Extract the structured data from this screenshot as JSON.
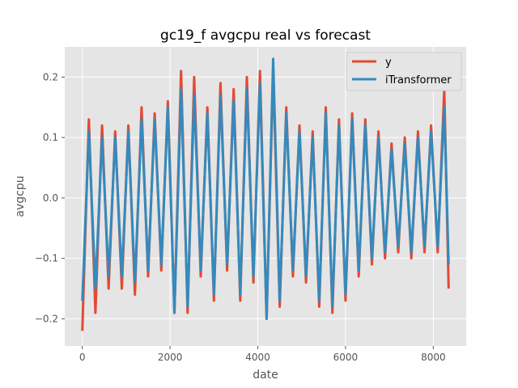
{
  "chart_data": {
    "type": "line",
    "title": "gc19_f avgcpu real vs forecast",
    "xlabel": "date",
    "ylabel": "avgcpu",
    "xlim": [
      -400,
      8750
    ],
    "ylim": [
      -0.245,
      0.25
    ],
    "xticks": [
      0,
      2000,
      4000,
      6000,
      8000
    ],
    "xtick_labels": [
      "0",
      "2000",
      "4000",
      "6000",
      "8000"
    ],
    "yticks": [
      -0.2,
      -0.1,
      0.0,
      0.1,
      0.2
    ],
    "ytick_labels": [
      "−0.2",
      "−0.1",
      "0.0",
      "0.1",
      "0.2"
    ],
    "grid": true,
    "legend_position": "top-right",
    "series": [
      {
        "name": "y",
        "color": "#e24a33",
        "x": [
          0,
          150,
          300,
          450,
          600,
          750,
          900,
          1050,
          1200,
          1350,
          1500,
          1650,
          1800,
          1950,
          2100,
          2250,
          2400,
          2550,
          2700,
          2850,
          3000,
          3150,
          3300,
          3450,
          3600,
          3750,
          3900,
          4050,
          4200,
          4350,
          4500,
          4650,
          4800,
          4950,
          5100,
          5250,
          5400,
          5550,
          5700,
          5850,
          6000,
          6150,
          6300,
          6450,
          6600,
          6750,
          6900,
          7050,
          7200,
          7350,
          7500,
          7650,
          7800,
          7950,
          8100,
          8250,
          8350
        ],
        "y": [
          -0.22,
          0.13,
          -0.19,
          0.12,
          -0.15,
          0.11,
          -0.15,
          0.12,
          -0.16,
          0.15,
          -0.13,
          0.14,
          -0.12,
          0.16,
          -0.19,
          0.21,
          -0.19,
          0.2,
          -0.13,
          0.15,
          -0.17,
          0.19,
          -0.12,
          0.18,
          -0.17,
          0.2,
          -0.14,
          0.21,
          -0.2,
          0.21,
          -0.18,
          0.15,
          -0.13,
          0.12,
          -0.14,
          0.11,
          -0.18,
          0.15,
          -0.19,
          0.13,
          -0.17,
          0.14,
          -0.13,
          0.13,
          -0.11,
          0.11,
          -0.1,
          0.09,
          -0.09,
          0.1,
          -0.1,
          0.11,
          -0.09,
          0.12,
          -0.09,
          0.18,
          -0.15
        ]
      },
      {
        "name": "iTransformer",
        "color": "#348abd",
        "x": [
          0,
          150,
          300,
          450,
          600,
          750,
          900,
          1050,
          1200,
          1350,
          1500,
          1650,
          1800,
          1950,
          2100,
          2250,
          2400,
          2550,
          2700,
          2850,
          3000,
          3150,
          3300,
          3450,
          3600,
          3750,
          3900,
          4050,
          4200,
          4350,
          4500,
          4650,
          4800,
          4950,
          5100,
          5250,
          5400,
          5550,
          5700,
          5850,
          6000,
          6150,
          6300,
          6450,
          6600,
          6750,
          6900,
          7050,
          7200,
          7350,
          7500,
          7650,
          7800,
          7950,
          8100,
          8250,
          8350
        ],
        "y": [
          -0.17,
          0.11,
          -0.15,
          0.1,
          -0.13,
          0.1,
          -0.13,
          0.11,
          -0.14,
          0.13,
          -0.12,
          0.13,
          -0.11,
          0.15,
          -0.19,
          0.18,
          -0.18,
          0.17,
          -0.12,
          0.14,
          -0.16,
          0.17,
          -0.11,
          0.16,
          -0.16,
          0.18,
          -0.13,
          0.19,
          -0.2,
          0.23,
          -0.17,
          0.14,
          -0.12,
          0.11,
          -0.13,
          0.1,
          -0.17,
          0.14,
          -0.18,
          0.12,
          -0.16,
          0.13,
          -0.12,
          0.12,
          -0.1,
          0.1,
          -0.09,
          0.08,
          -0.08,
          0.09,
          -0.09,
          0.1,
          -0.08,
          0.11,
          -0.08,
          0.15,
          -0.11
        ]
      }
    ]
  }
}
